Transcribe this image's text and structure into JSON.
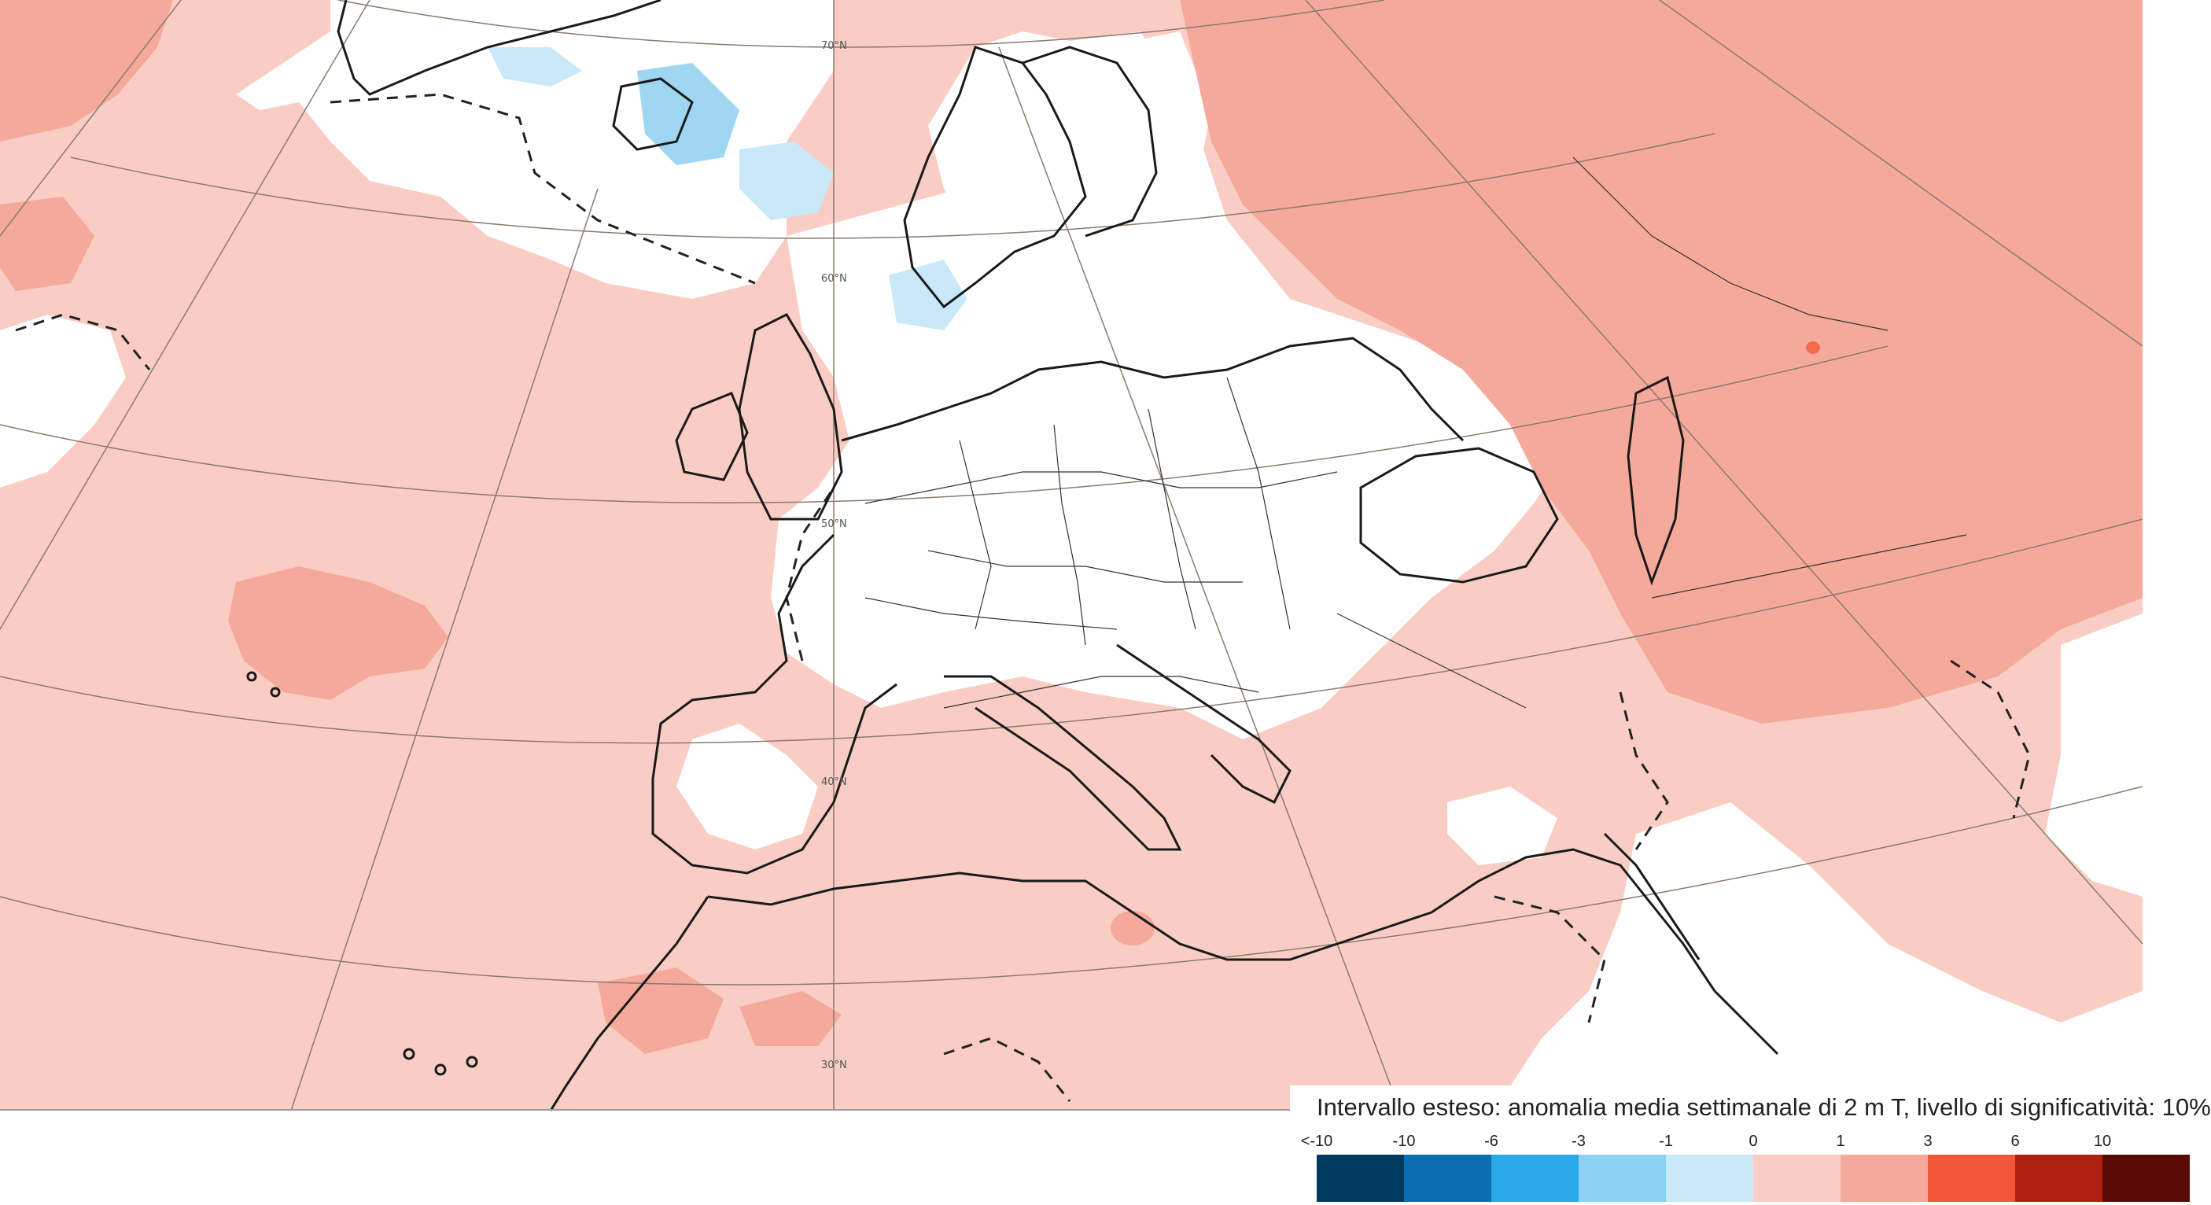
{
  "map": {
    "latitude_labels": [
      "70°N",
      "60°N",
      "50°N",
      "40°N",
      "30°N"
    ],
    "colors": {
      "ocean_background": "#f9cdc4",
      "no_anomaly": "#ffffff",
      "warm_1_3": "#f5a99a",
      "warm_3_6": "#f36a4f",
      "cool_0_-1": "#c9e8f8",
      "cool_-1_-3": "#9fd6f2",
      "coastline": "#1a1a1a",
      "graticule": "#8a7a70"
    }
  },
  "legend": {
    "title": "Intervallo esteso: anomalia media settimanale di 2 m T, livello di significatività: 10%",
    "ticks": [
      "<-10",
      "-10",
      "-6",
      "-3",
      "-1",
      "0",
      "1",
      "3",
      "6",
      "10"
    ],
    "swatches": [
      {
        "name": "below-minus-10",
        "color": "#003a5f"
      },
      {
        "name": "minus-10-to-minus-6",
        "color": "#0a6fb0"
      },
      {
        "name": "minus-6-to-minus-3",
        "color": "#2aa8ea"
      },
      {
        "name": "minus-3-to-minus-1",
        "color": "#8cd1f5"
      },
      {
        "name": "minus-1-to-0",
        "color": "#c9e8f8"
      },
      {
        "name": "0-to-1",
        "color": "#f9cdc4"
      },
      {
        "name": "1-to-3",
        "color": "#f5a99a"
      },
      {
        "name": "3-to-6",
        "color": "#f3573a"
      },
      {
        "name": "6-to-10",
        "color": "#b0200f"
      },
      {
        "name": "above-10",
        "color": "#5a0a05"
      }
    ]
  }
}
